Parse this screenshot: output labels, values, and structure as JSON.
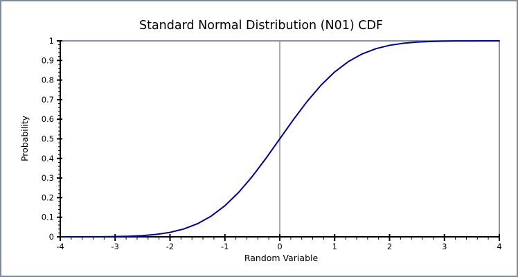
{
  "chart_data": {
    "type": "line",
    "title": "Standard Normal Distribution (N01) CDF",
    "xlabel": "Random Variable",
    "ylabel": "Probability",
    "xlim": [
      -4,
      4
    ],
    "ylim": [
      0,
      1
    ],
    "x_major_step": 1,
    "x_minor_step": 0.2,
    "y_major_step": 0.1,
    "y_minor_step": 0.02,
    "x_ticklabels": [
      "-4",
      "-3",
      "-2",
      "-1",
      "0",
      "1",
      "2",
      "3",
      "4"
    ],
    "y_ticklabels": [
      "0",
      "0.1",
      "0.2",
      "0.3",
      "0.4",
      "0.5",
      "0.6",
      "0.7",
      "0.8",
      "0.9",
      "1"
    ],
    "grid": "off",
    "legend": "none",
    "annotations": {
      "vertical_reference_line_x": 0,
      "top_frame_line_y": 1
    },
    "series": [
      {
        "name": "standard-normal-cdf",
        "x": [
          -4,
          -3.75,
          -3.5,
          -3.25,
          -3,
          -2.75,
          -2.5,
          -2.25,
          -2,
          -1.75,
          -1.5,
          -1.25,
          -1,
          -0.75,
          -0.5,
          -0.25,
          0,
          0.25,
          0.5,
          0.75,
          1,
          1.25,
          1.5,
          1.75,
          2,
          2.25,
          2.5,
          2.75,
          3,
          3.25,
          3.5,
          3.75,
          4
        ],
        "y": [
          3e-05,
          9e-05,
          0.00023,
          0.00058,
          0.00135,
          0.00298,
          0.00621,
          0.01222,
          0.02275,
          0.04006,
          0.06681,
          0.10565,
          0.15866,
          0.22663,
          0.30854,
          0.40129,
          0.5,
          0.59871,
          0.69146,
          0.77337,
          0.84134,
          0.89435,
          0.93319,
          0.95994,
          0.97725,
          0.98778,
          0.99379,
          0.99702,
          0.99865,
          0.99942,
          0.99977,
          0.99991,
          0.99997
        ]
      }
    ],
    "colors": {
      "curve": "#00008b",
      "axis": "#000000",
      "reference_line": "#808080",
      "frame": "#8694a6",
      "outer_border": "#7c8a99",
      "text": "#000000",
      "background": "#ffffff"
    }
  }
}
